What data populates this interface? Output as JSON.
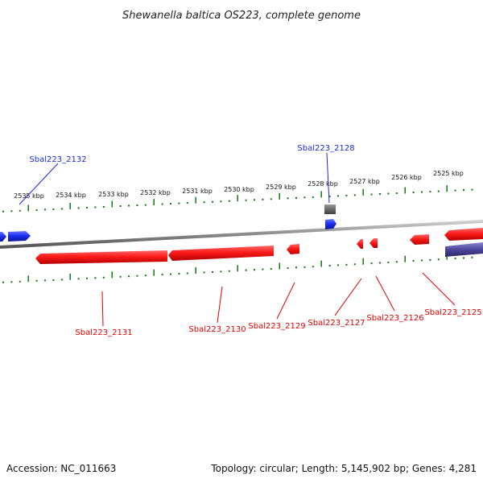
{
  "title": "Shewanella baltica OS223, complete genome",
  "accession": "Accession: NC_011663",
  "summary": "Topology: circular; Length: 5,145,902 bp; Genes: 4,281",
  "colors": {
    "forward": "#1a2bd9",
    "reverse": "#e00000",
    "misc": "#666666",
    "tick": "#117711",
    "backbone": "#888888",
    "purple_feature": "#3f3a8a"
  },
  "scale": {
    "unit": "kbp",
    "labels": [
      "2535 kbp",
      "2534 kbp",
      "2533 kbp",
      "2532 kbp",
      "2531 kbp",
      "2530 kbp",
      "2529 kbp",
      "2528 kbp",
      "2527 kbp",
      "2526 kbp",
      "2525 kbp"
    ]
  },
  "labels": {
    "forward": [
      "Sbal223_2132",
      "Sbal223_2128"
    ],
    "reverse": [
      "Sbal223_2131",
      "Sbal223_2130",
      "Sbal223_2129",
      "Sbal223_2127",
      "Sbal223_2126",
      "Sbal223_2125"
    ]
  }
}
